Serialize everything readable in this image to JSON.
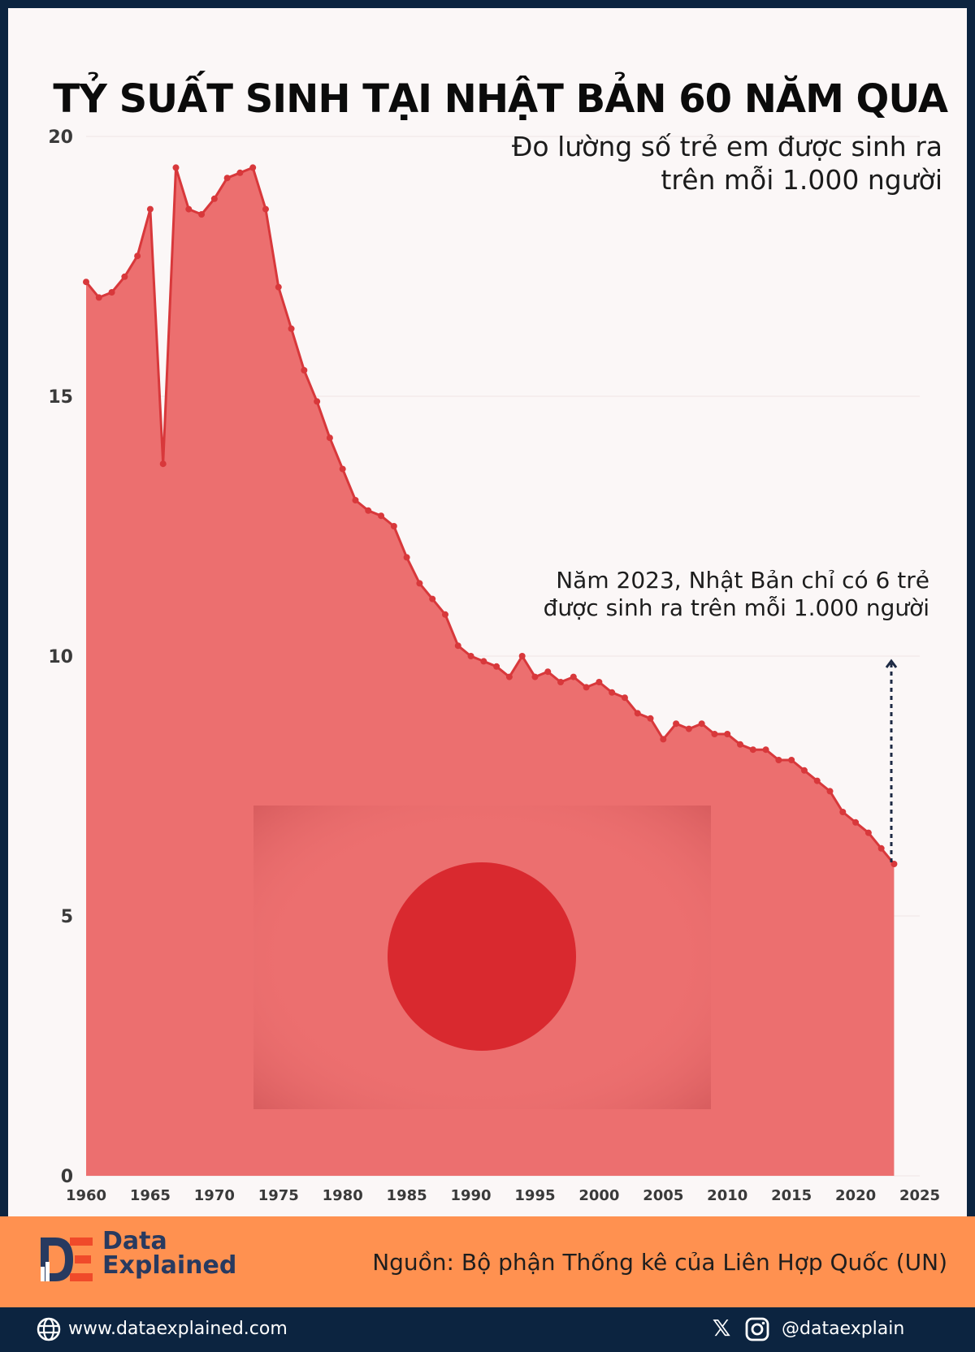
{
  "header": {
    "title": "TỶ SUẤT SINH TẠI NHẬT BẢN 60 NĂM QUA",
    "subtitle_line1": "Đo lường số trẻ em được sinh ra",
    "subtitle_line2": "trên mỗi 1.000 người"
  },
  "annotation": {
    "line1": "Năm 2023, Nhật Bản chỉ có 6 trẻ",
    "line2": "được sinh ra trên mỗi 1.000 người"
  },
  "chart_data": {
    "type": "area",
    "ylim": [
      0,
      20
    ],
    "xlim": [
      1960,
      2025
    ],
    "y_ticks": [
      "0",
      "5",
      "10",
      "15",
      "20"
    ],
    "x_ticks": [
      "1960",
      "1965",
      "1970",
      "1975",
      "1980",
      "1985",
      "1990",
      "1995",
      "2000",
      "2005",
      "2010",
      "2015",
      "2020",
      "2025"
    ],
    "grid": true,
    "colors": {
      "area": "#ec6f6f",
      "line": "#d8383b",
      "point": "#d8383b"
    },
    "x": [
      1960,
      1961,
      1962,
      1963,
      1964,
      1965,
      1966,
      1967,
      1968,
      1969,
      1970,
      1971,
      1972,
      1973,
      1974,
      1975,
      1976,
      1977,
      1978,
      1979,
      1980,
      1981,
      1982,
      1983,
      1984,
      1985,
      1986,
      1987,
      1988,
      1989,
      1990,
      1991,
      1992,
      1993,
      1994,
      1995,
      1996,
      1997,
      1998,
      1999,
      2000,
      2001,
      2002,
      2003,
      2004,
      2005,
      2006,
      2007,
      2008,
      2009,
      2010,
      2011,
      2012,
      2013,
      2014,
      2015,
      2016,
      2017,
      2018,
      2019,
      2020,
      2021,
      2022,
      2023
    ],
    "values": [
      17.2,
      16.9,
      17.0,
      17.3,
      17.7,
      18.6,
      13.7,
      19.4,
      18.6,
      18.5,
      18.8,
      19.2,
      19.3,
      19.4,
      18.6,
      17.1,
      16.3,
      15.5,
      14.9,
      14.2,
      13.6,
      13.0,
      12.8,
      12.7,
      12.5,
      11.9,
      11.4,
      11.1,
      10.8,
      10.2,
      10.0,
      9.9,
      9.8,
      9.6,
      10.0,
      9.6,
      9.7,
      9.5,
      9.6,
      9.4,
      9.5,
      9.3,
      9.2,
      8.9,
      8.8,
      8.4,
      8.7,
      8.6,
      8.7,
      8.5,
      8.5,
      8.3,
      8.2,
      8.2,
      8.0,
      8.0,
      7.8,
      7.6,
      7.4,
      7.0,
      6.8,
      6.6,
      6.3,
      6.0
    ]
  },
  "footer": {
    "brand_line1": "Data",
    "brand_line2": "Explained",
    "source": "Nguồn: Bộ phận Thống kê của Liên Hợp Quốc (UN)",
    "website": "www.dataexplained.com",
    "handle": "@dataexplain",
    "icons": [
      "globe-icon",
      "x-logo-icon",
      "instagram-icon"
    ],
    "colors": {
      "footer_bg": "#ff9150",
      "bar_bg": "#0c2440",
      "brand": "#283a60",
      "logo_accent": "#f04a2a"
    }
  }
}
